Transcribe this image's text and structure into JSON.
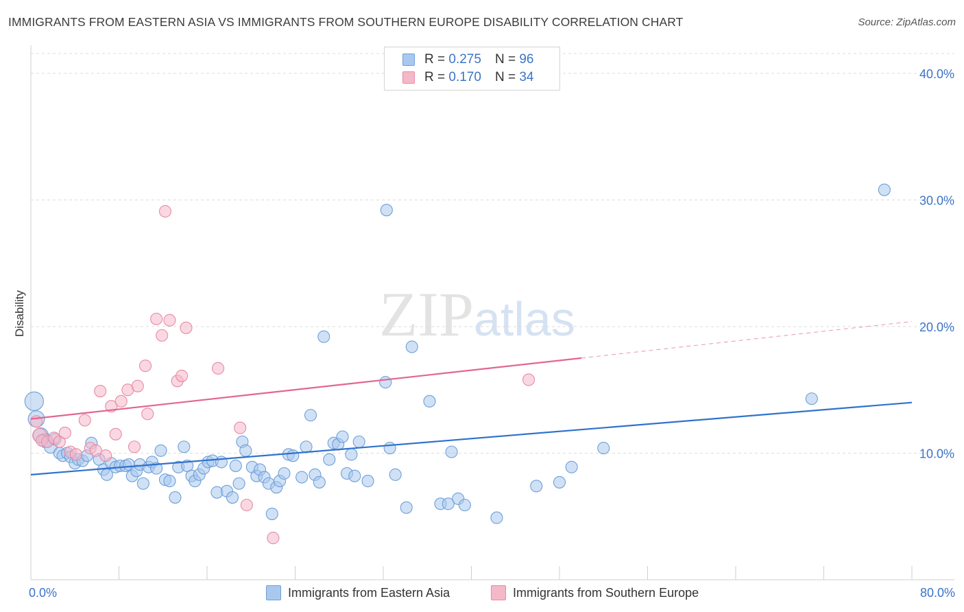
{
  "title": "IMMIGRANTS FROM EASTERN ASIA VS IMMIGRANTS FROM SOUTHERN EUROPE DISABILITY CORRELATION CHART",
  "source": "Source: ZipAtlas.com",
  "watermark": {
    "zip": "ZIP",
    "atlas": "atlas"
  },
  "legend": {
    "rows": [
      {
        "r_label": "R =",
        "r_value": "0.275",
        "n_label": "N =",
        "n_value": "96"
      },
      {
        "r_label": "R =",
        "r_value": "0.170",
        "n_label": "N =",
        "n_value": "34"
      }
    ]
  },
  "colors": {
    "blue_fill": "#aac8ee",
    "blue_stroke": "#6d9fd8",
    "blue_line": "#2f72cc",
    "pink_fill": "#f5b8c8",
    "pink_stroke": "#e68aa6",
    "pink_line": "#e26592",
    "tick_text": "#3a74c8"
  },
  "chart_data": {
    "type": "scatter",
    "xlabel": "",
    "ylabel": "Disability",
    "xlim": [
      0,
      80
    ],
    "ylim": [
      0,
      42
    ],
    "x_tick_labels": [
      {
        "x": 0,
        "label": "0.0%"
      },
      {
        "x": 80,
        "label": "80.0%"
      }
    ],
    "y_tick_labels": [
      {
        "y": 10,
        "label": "10.0%"
      },
      {
        "y": 20,
        "label": "20.0%"
      },
      {
        "y": 30,
        "label": "30.0%"
      },
      {
        "y": 40,
        "label": "40.0%"
      }
    ],
    "grid": "horizontal dashed",
    "legend_position": "top-center",
    "series": [
      {
        "name": "Immigrants from Eastern Asia",
        "color": "#aac8ee",
        "trend": {
          "x": [
            0,
            80
          ],
          "y": [
            8.3,
            14.0
          ],
          "dashed_after": null
        },
        "points": [
          [
            0.3,
            14.1,
            1.6
          ],
          [
            0.5,
            12.7,
            1.4
          ],
          [
            0.9,
            11.4,
            1.3
          ],
          [
            1.3,
            11.0,
            1.2
          ],
          [
            1.8,
            10.5,
            1.1
          ],
          [
            2.2,
            11.1,
            1.0
          ],
          [
            2.6,
            10.0,
            1.0
          ],
          [
            2.9,
            9.8,
            1.0
          ],
          [
            3.3,
            10.0,
            1.0
          ],
          [
            3.6,
            9.7,
            1.0
          ],
          [
            4.0,
            9.2,
            1.0
          ],
          [
            4.3,
            9.5,
            1.0
          ],
          [
            4.7,
            9.4,
            1.0
          ],
          [
            5.1,
            9.8,
            1.0
          ],
          [
            5.5,
            10.8,
            1.0
          ],
          [
            6.2,
            9.5,
            1.0
          ],
          [
            6.6,
            8.7,
            1.0
          ],
          [
            6.9,
            8.3,
            1.0
          ],
          [
            7.3,
            9.2,
            1.0
          ],
          [
            7.7,
            8.9,
            1.0
          ],
          [
            8.1,
            9.0,
            1.0
          ],
          [
            8.6,
            9.0,
            1.0
          ],
          [
            8.9,
            9.1,
            1.0
          ],
          [
            9.2,
            8.2,
            1.0
          ],
          [
            9.6,
            8.6,
            1.0
          ],
          [
            9.9,
            9.1,
            1.0
          ],
          [
            10.2,
            7.6,
            1.0
          ],
          [
            10.7,
            8.9,
            1.0
          ],
          [
            11.0,
            9.3,
            1.0
          ],
          [
            11.4,
            8.8,
            1.0
          ],
          [
            11.8,
            10.2,
            1.0
          ],
          [
            12.2,
            7.9,
            1.0
          ],
          [
            12.6,
            7.8,
            1.0
          ],
          [
            13.1,
            6.5,
            1.0
          ],
          [
            13.4,
            8.9,
            1.0
          ],
          [
            13.9,
            10.5,
            1.0
          ],
          [
            14.2,
            9.0,
            1.0
          ],
          [
            14.6,
            8.2,
            1.0
          ],
          [
            14.9,
            7.8,
            1.0
          ],
          [
            15.3,
            8.3,
            1.0
          ],
          [
            15.7,
            8.8,
            1.0
          ],
          [
            16.1,
            9.3,
            1.0
          ],
          [
            16.5,
            9.4,
            1.0
          ],
          [
            16.9,
            6.9,
            1.0
          ],
          [
            17.3,
            9.3,
            1.0
          ],
          [
            17.8,
            7.0,
            1.0
          ],
          [
            18.3,
            6.5,
            1.0
          ],
          [
            18.6,
            9.0,
            1.0
          ],
          [
            18.9,
            7.6,
            1.0
          ],
          [
            19.2,
            10.9,
            1.0
          ],
          [
            19.5,
            10.2,
            1.0
          ],
          [
            20.1,
            8.9,
            1.0
          ],
          [
            20.5,
            8.2,
            1.0
          ],
          [
            20.8,
            8.7,
            1.0
          ],
          [
            21.2,
            8.1,
            1.0
          ],
          [
            21.6,
            7.6,
            1.0
          ],
          [
            21.9,
            5.2,
            1.0
          ],
          [
            22.3,
            7.3,
            1.0
          ],
          [
            22.6,
            7.8,
            1.0
          ],
          [
            23.0,
            8.4,
            1.0
          ],
          [
            23.4,
            9.9,
            1.0
          ],
          [
            23.8,
            9.8,
            1.0
          ],
          [
            24.6,
            8.1,
            1.0
          ],
          [
            25.0,
            10.5,
            1.0
          ],
          [
            25.4,
            13.0,
            1.0
          ],
          [
            25.8,
            8.3,
            1.0
          ],
          [
            26.2,
            7.7,
            1.0
          ],
          [
            26.6,
            19.2,
            1.0
          ],
          [
            27.1,
            9.5,
            1.0
          ],
          [
            27.5,
            10.8,
            1.0
          ],
          [
            27.9,
            10.7,
            1.0
          ],
          [
            28.3,
            11.3,
            1.0
          ],
          [
            28.7,
            8.4,
            1.0
          ],
          [
            29.1,
            9.9,
            1.0
          ],
          [
            29.4,
            8.2,
            1.0
          ],
          [
            29.8,
            10.9,
            1.0
          ],
          [
            30.6,
            7.8,
            1.0
          ],
          [
            32.2,
            15.6,
            1.0
          ],
          [
            32.3,
            29.2,
            1.0
          ],
          [
            32.6,
            10.4,
            1.0
          ],
          [
            33.1,
            8.3,
            1.0
          ],
          [
            34.1,
            5.7,
            1.0
          ],
          [
            34.6,
            18.4,
            1.0
          ],
          [
            36.2,
            14.1,
            1.0
          ],
          [
            37.2,
            6.0,
            1.0
          ],
          [
            37.9,
            6.0,
            1.0
          ],
          [
            38.2,
            10.1,
            1.0
          ],
          [
            38.8,
            6.4,
            1.0
          ],
          [
            39.4,
            5.9,
            1.0
          ],
          [
            42.3,
            4.9,
            1.0
          ],
          [
            45.9,
            7.4,
            1.0
          ],
          [
            48.0,
            7.7,
            1.0
          ],
          [
            49.1,
            8.9,
            1.0
          ],
          [
            52.0,
            10.4,
            1.0
          ],
          [
            70.9,
            14.3,
            1.0
          ],
          [
            77.5,
            30.8,
            1.0
          ]
        ]
      },
      {
        "name": "Immigrants from Southern Europe",
        "color": "#f5b8c8",
        "trend": {
          "x": [
            0,
            80
          ],
          "y": [
            12.7,
            20.4
          ],
          "dashed_after": 50
        },
        "points": [
          [
            0.5,
            12.5,
            1.0
          ],
          [
            0.8,
            11.4,
            1.2
          ],
          [
            1.0,
            11.0,
            1.0
          ],
          [
            1.5,
            10.9,
            1.0
          ],
          [
            2.1,
            11.2,
            1.0
          ],
          [
            2.6,
            10.9,
            1.0
          ],
          [
            3.1,
            11.6,
            1.0
          ],
          [
            3.6,
            10.1,
            1.0
          ],
          [
            4.1,
            9.9,
            1.0
          ],
          [
            4.9,
            12.6,
            1.0
          ],
          [
            5.4,
            10.4,
            1.0
          ],
          [
            5.9,
            10.2,
            1.0
          ],
          [
            6.3,
            14.9,
            1.0
          ],
          [
            6.8,
            9.8,
            1.0
          ],
          [
            7.3,
            13.7,
            1.0
          ],
          [
            7.7,
            11.5,
            1.0
          ],
          [
            8.2,
            14.1,
            1.0
          ],
          [
            8.8,
            15.0,
            1.0
          ],
          [
            9.4,
            10.5,
            1.0
          ],
          [
            9.7,
            15.3,
            1.0
          ],
          [
            10.4,
            16.9,
            1.0
          ],
          [
            10.6,
            13.1,
            1.0
          ],
          [
            11.4,
            20.6,
            1.0
          ],
          [
            11.9,
            19.3,
            1.0
          ],
          [
            12.2,
            29.1,
            1.0
          ],
          [
            12.6,
            20.5,
            1.0
          ],
          [
            13.3,
            15.7,
            1.0
          ],
          [
            13.7,
            16.1,
            1.0
          ],
          [
            14.1,
            19.9,
            1.0
          ],
          [
            17.0,
            16.7,
            1.0
          ],
          [
            19.0,
            12.0,
            1.0
          ],
          [
            19.6,
            5.9,
            1.0
          ],
          [
            22.0,
            3.3,
            1.0
          ],
          [
            45.2,
            15.8,
            1.0
          ]
        ]
      }
    ]
  },
  "bottom_legend": [
    {
      "label": "Immigrants from Eastern Asia"
    },
    {
      "label": "Immigrants from Southern Europe"
    }
  ]
}
